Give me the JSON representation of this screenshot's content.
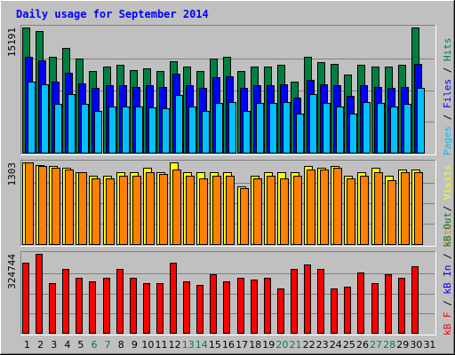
{
  "chart_data": {
    "type": "bar",
    "title": "Daily usage for September 2014",
    "categories": [
      "1",
      "2",
      "3",
      "4",
      "5",
      "6",
      "7",
      "8",
      "9",
      "10",
      "11",
      "12",
      "13",
      "14",
      "15",
      "16",
      "17",
      "18",
      "19",
      "20",
      "21",
      "22",
      "23",
      "24",
      "25",
      "26",
      "27",
      "28",
      "29",
      "30",
      "31"
    ],
    "weekend_days": [
      "6",
      "7",
      "13",
      "14",
      "20",
      "21",
      "27",
      "28"
    ],
    "panels": [
      {
        "name": "hits-files-pages",
        "max_label": "15191",
        "ylim": [
          0,
          15191
        ],
        "legend": [
          {
            "name": "Pages",
            "color": "#00c0ff"
          },
          {
            "name": "Files",
            "color": "#0000ff"
          },
          {
            "name": "Hits",
            "color": "#008040"
          }
        ],
        "separator": " / ",
        "series": [
          {
            "name": "Hits",
            "color": "#008040",
            "values": [
              15191,
              14787,
              11633,
              12689,
              11421,
              9894,
              10463,
              10640,
              10047,
              10187,
              9936,
              11093,
              10463,
              9894,
              11474,
              11686,
              9894,
              10463,
              10463,
              10640,
              8621,
              11686,
              10978,
              10808,
              9469,
              10640,
              10463,
              10463,
              10640,
              15191,
              null
            ]
          },
          {
            "name": "Files",
            "color": "#0000ff",
            "values": [
              11686,
              11209,
              8621,
              9726,
              8454,
              7818,
              8155,
              8155,
              7997,
              8155,
              7997,
              9552,
              8155,
              7818,
              9119,
              9213,
              7818,
              8155,
              8155,
              8277,
              6691,
              8874,
              8277,
              8155,
              6872,
              8155,
              7997,
              7818,
              7997,
              10808,
              null
            ]
          },
          {
            "name": "Pages",
            "color": "#00c0ff",
            "values": [
              8621,
              8277,
              5964,
              7149,
              5964,
              5095,
              5593,
              5605,
              5593,
              5536,
              5436,
              6980,
              5605,
              5095,
              5990,
              6117,
              5095,
              5990,
              5990,
              6117,
              4776,
              7149,
              5990,
              5605,
              4776,
              6117,
              5990,
              5605,
              5964,
              7818,
              null
            ]
          }
        ]
      },
      {
        "name": "visits-sites",
        "max_label": "1303",
        "ylim": [
          0,
          1303
        ],
        "legend": [
          {
            "name": "Sites",
            "color": "#ff8000"
          },
          {
            "name": "Visits",
            "color": "#ffff00"
          }
        ],
        "separator": " / ",
        "series": [
          {
            "name": "Visits",
            "color": "#ffff00",
            "values": [
              1303,
              1260,
              1244,
              1214,
              1147,
              1087,
              1087,
              1145,
              1147,
              1214,
              1147,
              1303,
              1147,
              1147,
              1147,
              1147,
              922,
              1087,
              1147,
              1147,
              1147,
              1244,
              1214,
              1244,
              1087,
              1145,
              1214,
              1087,
              1184,
              1184,
              null
            ]
          },
          {
            "name": "Sites",
            "color": "#ff8000",
            "values": [
              1303,
              1244,
              1214,
              1184,
              1145,
              1055,
              1055,
              1087,
              1087,
              1145,
              1113,
              1184,
              1087,
              1055,
              1087,
              1087,
              890,
              1055,
              1087,
              1055,
              1087,
              1184,
              1184,
              1214,
              1055,
              1087,
              1145,
              1019,
              1145,
              1145,
              null
            ]
          }
        ]
      },
      {
        "name": "kb-in-out",
        "max_label": "324744",
        "ylim": [
          0,
          324744
        ],
        "legend": [
          {
            "name": "kB F",
            "color": "#ff0000"
          },
          {
            "name": "kB In",
            "color": "#0000ff"
          },
          {
            "name": "kB Out",
            "color": "#008040"
          }
        ],
        "separator": " / ",
        "series": [
          {
            "name": "kB F",
            "color": "#ff0000",
            "values": [
              287233,
              324744,
              204038,
              264214,
              226636,
              211533,
              226636,
              264214,
              226636,
              204038,
              204038,
              287233,
              211533,
              196485,
              241692,
              211533,
              226636,
              219066,
              226636,
              181389,
              264214,
              279710,
              264214,
              181389,
              188938,
              249242,
              204038,
              241692,
              226636,
              272140,
              null
            ]
          }
        ]
      }
    ]
  }
}
